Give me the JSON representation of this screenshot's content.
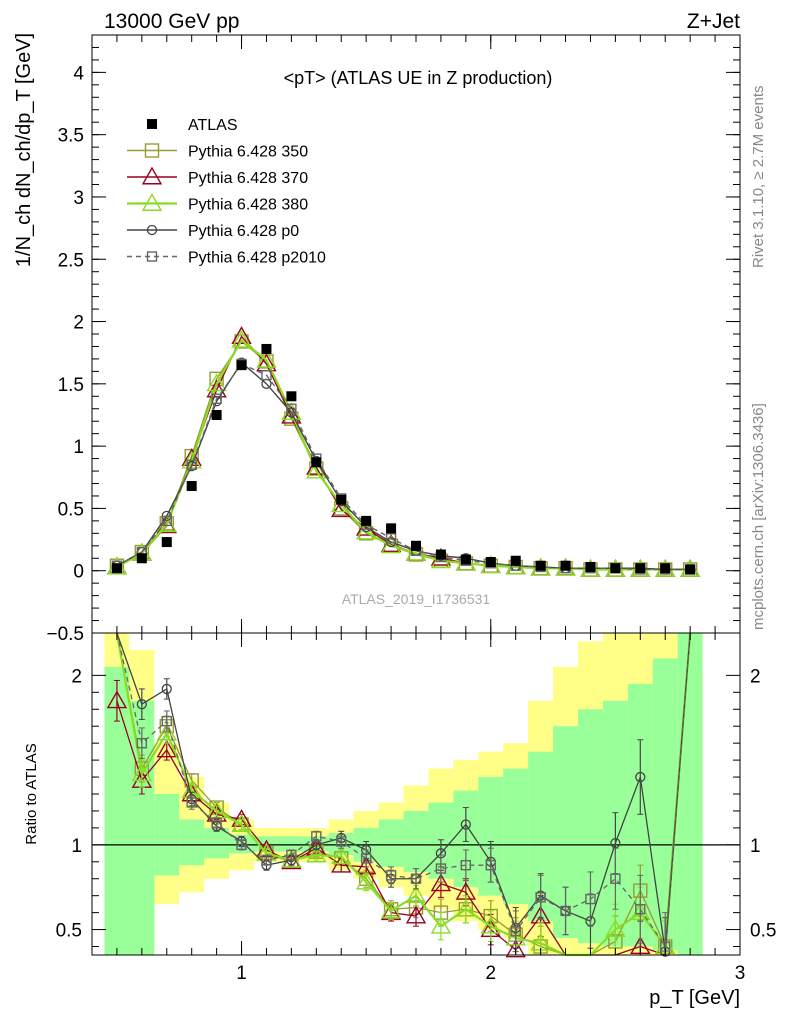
{
  "header": {
    "left": "13000 GeV pp",
    "right": "Z+Jet"
  },
  "side_text": {
    "rivet": "Rivet 3.1.10, ≥ 2.7M events",
    "mcplots": "mcplots.cern.ch [arXiv:1306.3436]"
  },
  "colors": {
    "atlas": "#000000",
    "p350": "#999933",
    "p370": "#990022",
    "p380": "#88dd22",
    "p0": "#444444",
    "p2010": "#666666",
    "band_inner": "#99ff99",
    "band_outer": "#ffff88"
  },
  "chart_data": [
    {
      "type": "scatter",
      "title": "<pT> (ATLAS UE in Z production)",
      "ylabel": "1/N_ch dN_ch/dp_T [GeV]",
      "watermark": "ATLAS_2019_I1736531",
      "xlim": [
        0.4,
        3.0
      ],
      "ylim": [
        -0.5,
        4.3
      ],
      "yticks": [
        -0.5,
        0,
        0.5,
        1,
        1.5,
        2,
        2.5,
        3,
        3.5,
        4
      ],
      "ytick_labels": [
        "−0.5",
        "0",
        "0.5",
        "1",
        "1.5",
        "2",
        "2.5",
        "3",
        "3.5",
        "4"
      ],
      "legend_position": "top-left",
      "x": [
        0.5,
        0.6,
        0.7,
        0.8,
        0.9,
        1.0,
        1.1,
        1.2,
        1.3,
        1.4,
        1.5,
        1.6,
        1.7,
        1.8,
        1.9,
        2.0,
        2.1,
        2.2,
        2.3,
        2.4,
        2.5,
        2.6,
        2.7,
        2.8
      ],
      "series": [
        {
          "name": "ATLAS",
          "key": "atlas",
          "marker": "filled-square",
          "line": "none",
          "values": [
            0.02,
            0.1,
            0.23,
            0.68,
            1.25,
            1.65,
            1.78,
            1.4,
            0.87,
            0.57,
            0.4,
            0.34,
            0.2,
            0.13,
            0.09,
            0.07,
            0.08,
            0.04,
            0.04,
            0.03,
            0.02,
            0.02,
            0.02,
            0.01
          ]
        },
        {
          "name": "Pythia 6.428 350",
          "key": "p350",
          "marker": "open-square",
          "line": "solid",
          "values": [
            0.04,
            0.15,
            0.38,
            0.92,
            1.54,
            1.84,
            1.68,
            1.22,
            0.82,
            0.5,
            0.3,
            0.2,
            0.13,
            0.08,
            0.06,
            0.04,
            0.03,
            0.02,
            0.02,
            0.01,
            0.01,
            0.01,
            0.01,
            0.01
          ]
        },
        {
          "name": "Pythia 6.428 370",
          "key": "p370",
          "marker": "open-triangle",
          "line": "solid",
          "values": [
            0.03,
            0.14,
            0.36,
            0.9,
            1.45,
            1.88,
            1.66,
            1.24,
            0.83,
            0.49,
            0.34,
            0.21,
            0.14,
            0.1,
            0.06,
            0.04,
            0.03,
            0.02,
            0.02,
            0.01,
            0.01,
            0.01,
            0.01,
            0.01
          ]
        },
        {
          "name": "Pythia 6.428 380",
          "key": "p380",
          "marker": "open-triangle",
          "line": "solid",
          "values": [
            0.03,
            0.14,
            0.37,
            0.88,
            1.5,
            1.85,
            1.69,
            1.27,
            0.8,
            0.53,
            0.31,
            0.2,
            0.14,
            0.08,
            0.06,
            0.04,
            0.03,
            0.02,
            0.02,
            0.01,
            0.01,
            0.01,
            0.01,
            0.01
          ]
        },
        {
          "name": "Pythia 6.428 p0",
          "key": "p0",
          "marker": "open-circle",
          "line": "solid",
          "values": [
            0.04,
            0.15,
            0.44,
            0.84,
            1.36,
            1.67,
            1.5,
            1.27,
            0.88,
            0.56,
            0.35,
            0.23,
            0.16,
            0.12,
            0.1,
            0.06,
            0.04,
            0.03,
            0.02,
            0.02,
            0.02,
            0.02,
            0.01,
            0.01
          ]
        },
        {
          "name": "Pythia 6.428 p2010",
          "key": "p2010",
          "marker": "open-square-small",
          "line": "dashed",
          "values": [
            0.04,
            0.15,
            0.4,
            0.85,
            1.38,
            1.66,
            1.57,
            1.3,
            0.9,
            0.58,
            0.37,
            0.26,
            0.16,
            0.11,
            0.08,
            0.06,
            0.04,
            0.03,
            0.02,
            0.02,
            0.02,
            0.01,
            0.01,
            0.01
          ]
        }
      ]
    },
    {
      "type": "line",
      "ylabel": "Ratio to ATLAS",
      "xlabel": "p_T [GeV]",
      "xlim": [
        0.4,
        3.0
      ],
      "ylim": [
        0.35,
        2.25
      ],
      "xticks": [
        1,
        2,
        3
      ],
      "yticks": [
        0.5,
        1,
        2
      ],
      "reference_line": 1,
      "x_edges": [
        0.45,
        0.55,
        0.65,
        0.75,
        0.85,
        0.95,
        1.05,
        1.15,
        1.25,
        1.35,
        1.45,
        1.55,
        1.65,
        1.75,
        1.85,
        1.95,
        2.05,
        2.15,
        2.25,
        2.35,
        2.45,
        2.55,
        2.65,
        2.75,
        2.85
      ],
      "band_outer_lo": [
        0.35,
        0.35,
        0.65,
        0.72,
        0.8,
        0.85,
        0.9,
        0.9,
        0.9,
        0.85,
        0.8,
        0.75,
        0.7,
        0.62,
        0.55,
        0.5,
        0.45,
        0.35,
        0.35,
        0.35,
        0.35,
        0.35,
        0.35,
        0.35
      ],
      "band_outer_hi": [
        2.25,
        2.15,
        1.6,
        1.4,
        1.25,
        1.15,
        1.1,
        1.1,
        1.1,
        1.15,
        1.2,
        1.25,
        1.35,
        1.45,
        1.5,
        1.55,
        1.6,
        1.85,
        2.05,
        2.2,
        2.25,
        2.25,
        2.25,
        2.25
      ],
      "band_inner_lo": [
        0.35,
        0.35,
        0.82,
        0.88,
        0.92,
        0.95,
        0.96,
        0.96,
        0.96,
        0.94,
        0.9,
        0.87,
        0.84,
        0.8,
        0.75,
        0.7,
        0.65,
        0.55,
        0.45,
        0.42,
        0.4,
        0.4,
        0.38,
        0.35
      ],
      "band_inner_hi": [
        2.05,
        1.85,
        1.3,
        1.15,
        1.1,
        1.06,
        1.05,
        1.05,
        1.05,
        1.07,
        1.1,
        1.15,
        1.2,
        1.25,
        1.32,
        1.4,
        1.45,
        1.55,
        1.7,
        1.8,
        1.85,
        1.95,
        2.1,
        2.25
      ],
      "series": [
        {
          "key": "p350",
          "values": [
            2.4,
            1.45,
            1.7,
            1.38,
            1.22,
            1.12,
            0.95,
            0.9,
            0.96,
            0.92,
            0.8,
            0.62,
            0.63,
            0.6,
            0.62,
            0.58,
            0.47,
            0.4,
            0.35,
            0.35,
            0.43,
            0.73,
            0.4,
            2.4
          ],
          "err": [
            0.0,
            0.08,
            0.06,
            0.04,
            0.03,
            0.03,
            0.03,
            0.03,
            0.03,
            0.04,
            0.05,
            0.05,
            0.06,
            0.08,
            0.08,
            0.09,
            0.1,
            0.12,
            0.12,
            0.15,
            0.15,
            0.15,
            0.15,
            0.2
          ]
        },
        {
          "key": "p370",
          "values": [
            1.85,
            1.38,
            1.56,
            1.3,
            1.18,
            1.15,
            0.97,
            0.9,
            0.98,
            0.88,
            0.87,
            0.6,
            0.58,
            0.77,
            0.72,
            0.5,
            0.38,
            0.58,
            0.35,
            0.35,
            0.35,
            0.4,
            0.35,
            2.4
          ],
          "err": [
            0.12,
            0.08,
            0.06,
            0.04,
            0.03,
            0.03,
            0.03,
            0.03,
            0.03,
            0.04,
            0.04,
            0.05,
            0.06,
            0.08,
            0.08,
            0.09,
            0.1,
            0.12,
            0.12,
            0.15,
            0.15,
            0.15,
            0.15,
            0.2
          ]
        },
        {
          "key": "p380",
          "values": [
            2.4,
            1.42,
            1.66,
            1.32,
            1.2,
            1.12,
            0.95,
            0.91,
            0.94,
            0.93,
            0.78,
            0.61,
            0.7,
            0.52,
            0.62,
            0.52,
            0.45,
            0.42,
            0.35,
            0.35,
            0.5,
            0.6,
            0.4,
            2.4
          ],
          "err": [
            0.0,
            0.08,
            0.06,
            0.04,
            0.03,
            0.03,
            0.03,
            0.03,
            0.03,
            0.04,
            0.05,
            0.05,
            0.06,
            0.08,
            0.08,
            0.09,
            0.1,
            0.12,
            0.12,
            0.15,
            0.15,
            0.15,
            0.15,
            0.2
          ]
        },
        {
          "key": "p0",
          "values": [
            2.4,
            1.83,
            1.92,
            1.27,
            1.11,
            1.02,
            0.88,
            0.91,
            1.0,
            1.04,
            0.97,
            0.8,
            0.8,
            0.95,
            1.12,
            0.9,
            0.51,
            0.7,
            0.61,
            0.55,
            1.01,
            1.4,
            0.37,
            2.4
          ],
          "err": [
            0.0,
            0.09,
            0.06,
            0.04,
            0.03,
            0.03,
            0.03,
            0.03,
            0.03,
            0.04,
            0.05,
            0.05,
            0.06,
            0.08,
            0.1,
            0.12,
            0.12,
            0.13,
            0.14,
            0.16,
            0.18,
            0.22,
            0.2,
            0.2
          ]
        },
        {
          "key": "p2010",
          "values": [
            2.4,
            1.6,
            1.73,
            1.25,
            1.13,
            1.0,
            0.91,
            0.94,
            1.05,
            1.02,
            0.92,
            0.82,
            0.8,
            0.86,
            0.88,
            0.88,
            0.49,
            0.69,
            0.61,
            0.68,
            0.8,
            0.62,
            0.4,
            2.3
          ],
          "err": [
            0.0,
            0.09,
            0.06,
            0.04,
            0.03,
            0.03,
            0.03,
            0.03,
            0.03,
            0.04,
            0.05,
            0.05,
            0.06,
            0.08,
            0.09,
            0.1,
            0.12,
            0.13,
            0.14,
            0.16,
            0.18,
            0.2,
            0.2,
            0.3
          ]
        }
      ]
    }
  ]
}
